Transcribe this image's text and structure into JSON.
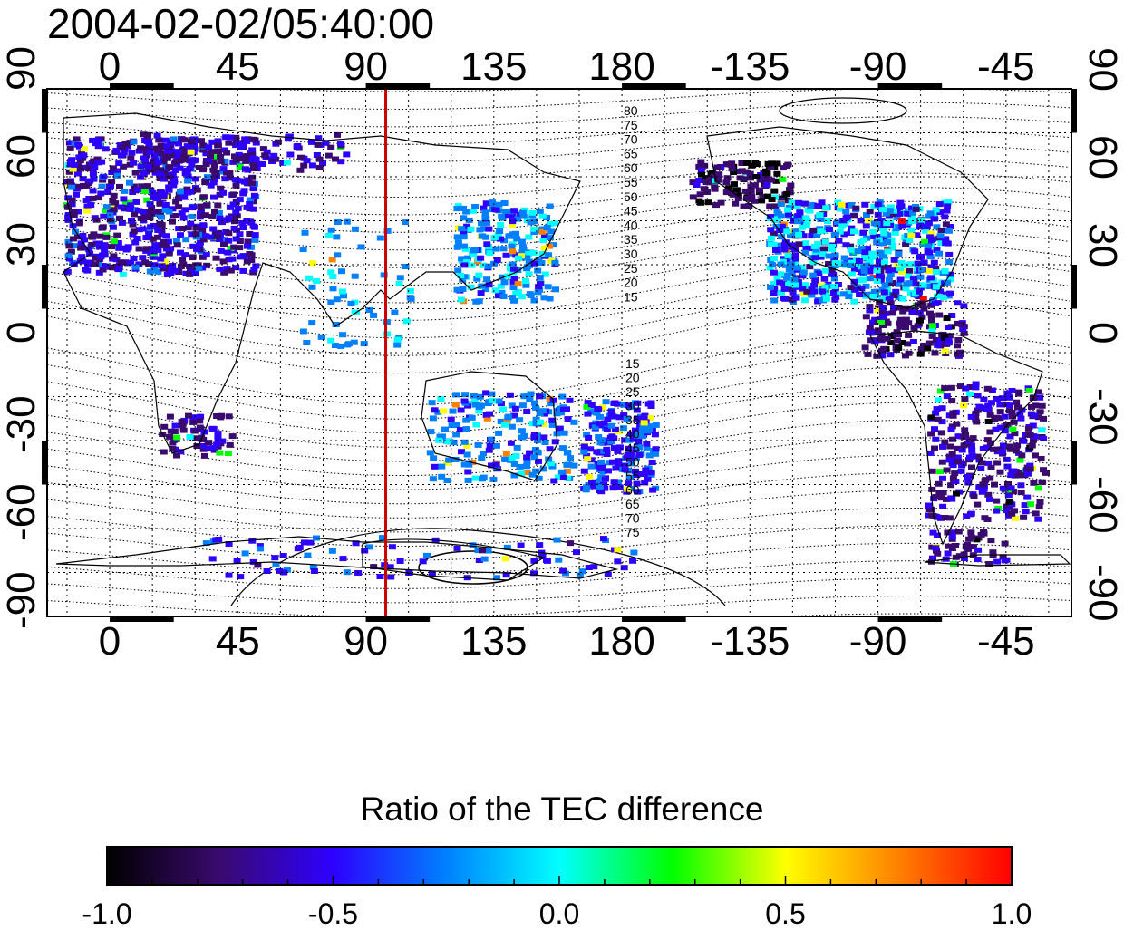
{
  "title": "2004-02-02/05:40:00",
  "axes": {
    "top_ticks": [
      "0",
      "45",
      "90",
      "135",
      "180",
      "-135",
      "-90",
      "-45"
    ],
    "bottom_ticks": [
      "0",
      "45",
      "90",
      "135",
      "180",
      "-135",
      "-90",
      "-45"
    ],
    "left_ticks": [
      "90",
      "60",
      "30",
      "0",
      "-30",
      "-60",
      "-90"
    ],
    "right_ticks": [
      "90",
      "60",
      "30",
      "0",
      "-30",
      "-60",
      "-90"
    ]
  },
  "terminator_longitude": 97,
  "contour_labels_north": [
    "80",
    "75",
    "70",
    "65",
    "60",
    "55",
    "50",
    "45",
    "40",
    "35",
    "30",
    "25",
    "20",
    "15"
  ],
  "contour_labels_south": [
    "15",
    "20",
    "25",
    "30",
    "35",
    "40",
    "45",
    "50",
    "55",
    "60",
    "65",
    "70",
    "75"
  ],
  "colorbar": {
    "title": "Ratio of the TEC difference",
    "min": -1.0,
    "max": 1.0,
    "tick_labels": [
      "-1.0",
      "-0.5",
      "0.0",
      "0.5",
      "1.0"
    ],
    "colors": [
      "#000000",
      "#3a0a6e",
      "#2d00ff",
      "#0080ff",
      "#00ffff",
      "#00ff00",
      "#ffff00",
      "#ff8000",
      "#ff0000"
    ]
  },
  "colors": {
    "terminator": "#cc0000",
    "frame": "#000000"
  }
}
